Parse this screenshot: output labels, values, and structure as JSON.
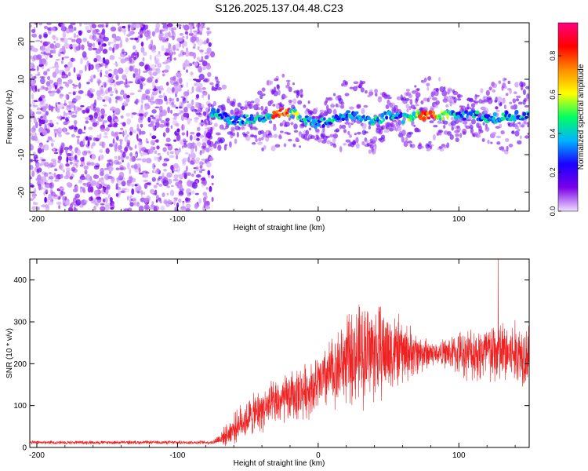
{
  "figure": {
    "title": "S126.2025.137.04.48.C23"
  },
  "chart_data": [
    {
      "type": "heatmap",
      "xlabel": "Height of straight line (km)",
      "ylabel": "Frequency (Hz)",
      "xlim": [
        -205,
        150
      ],
      "ylim": [
        -25,
        25
      ],
      "xticks": [
        -200,
        -100,
        0,
        100
      ],
      "yticks": [
        -20,
        -10,
        0,
        10,
        20
      ],
      "colorbar": {
        "label": "Normalized spectral amplitude",
        "range": [
          0.0,
          0.97
        ],
        "ticks": [
          "0.0",
          "0.2",
          "0.4",
          "0.6",
          "0.8"
        ],
        "tick_values": [
          0.0,
          0.2,
          0.4,
          0.6,
          0.8
        ],
        "colormap": "rainbow",
        "stops": [
          "#f0e0ff",
          "#7b00e8",
          "#1a00ff",
          "#00b4ff",
          "#00ff60",
          "#ffff00",
          "#ff8c00",
          "#ff0000",
          "#ff0080"
        ]
      },
      "noise_region": {
        "x_start": -205,
        "x_end": -75,
        "level_range": [
          0.0,
          0.12
        ]
      },
      "ridge_centerline": [
        {
          "x": -75,
          "y": 2.5
        },
        {
          "x": -70,
          "y": 0.5
        },
        {
          "x": -60,
          "y": -1.0
        },
        {
          "x": -50,
          "y": -0.5
        },
        {
          "x": -40,
          "y": -0.5
        },
        {
          "x": -30,
          "y": 1.0
        },
        {
          "x": -25,
          "y": 1.5
        },
        {
          "x": -15,
          "y": 0.5
        },
        {
          "x": -5,
          "y": -1.5
        },
        {
          "x": 0,
          "y": -2.0
        },
        {
          "x": 10,
          "y": -0.5
        },
        {
          "x": 20,
          "y": 0.5
        },
        {
          "x": 30,
          "y": 0.0
        },
        {
          "x": 40,
          "y": -1.0
        },
        {
          "x": 50,
          "y": 0.5
        },
        {
          "x": 60,
          "y": -0.5
        },
        {
          "x": 70,
          "y": 0.5
        },
        {
          "x": 85,
          "y": 0.5
        },
        {
          "x": 100,
          "y": 0.5
        },
        {
          "x": 110,
          "y": 0.5
        },
        {
          "x": 120,
          "y": -0.5
        },
        {
          "x": 130,
          "y": 0.0
        },
        {
          "x": 150,
          "y": 0.5
        }
      ],
      "ridge_peak_amplitude": 0.97
    },
    {
      "type": "line",
      "xlabel": "Height of straight line (km)",
      "ylabel": "SNR (10 * v/v)",
      "xlim": [
        -205,
        150
      ],
      "ylim": [
        0,
        450
      ],
      "xticks": [
        -200,
        -100,
        0,
        100
      ],
      "yticks": [
        0,
        100,
        200,
        300,
        400
      ],
      "color": "#ee2222",
      "envelope": [
        {
          "x": -205,
          "mean": 12,
          "spread": 5
        },
        {
          "x": -75,
          "mean": 12,
          "spread": 5
        },
        {
          "x": -65,
          "mean": 30,
          "spread": 30
        },
        {
          "x": -55,
          "mean": 60,
          "spread": 50
        },
        {
          "x": -40,
          "mean": 90,
          "spread": 60
        },
        {
          "x": -20,
          "mean": 120,
          "spread": 70
        },
        {
          "x": 0,
          "mean": 150,
          "spread": 80
        },
        {
          "x": 20,
          "mean": 210,
          "spread": 120
        },
        {
          "x": 35,
          "mean": 230,
          "spread": 150
        },
        {
          "x": 50,
          "mean": 230,
          "spread": 120
        },
        {
          "x": 70,
          "mean": 225,
          "spread": 60
        },
        {
          "x": 85,
          "mean": 225,
          "spread": 30
        },
        {
          "x": 100,
          "mean": 225,
          "spread": 60
        },
        {
          "x": 120,
          "mean": 225,
          "spread": 90
        },
        {
          "x": 150,
          "mean": 225,
          "spread": 90
        }
      ],
      "max_point": {
        "x": 128,
        "y": 450
      }
    }
  ]
}
